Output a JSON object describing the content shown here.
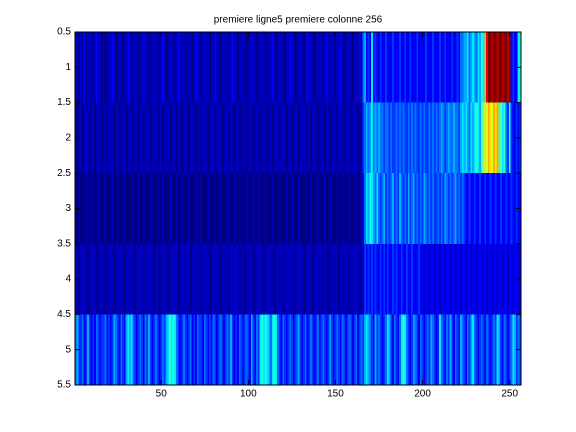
{
  "chart_data": {
    "type": "heatmap",
    "title": "premiere ligne5 premiere colonne 256",
    "colormap": "jet",
    "clim": [
      2,
      19
    ],
    "xlim": [
      0.5,
      256.5
    ],
    "xticks": [
      50,
      100,
      150,
      200,
      250
    ],
    "ylim": [
      0.5,
      5.5
    ],
    "y_reversed": true,
    "yticks": [
      0.5,
      1,
      1.5,
      2,
      2.5,
      3,
      3.5,
      4,
      4.5,
      5,
      5.5
    ],
    "values": [
      [
        3,
        3,
        2,
        3,
        3,
        4,
        2,
        3,
        3,
        3,
        2,
        3,
        4,
        3,
        3,
        2,
        3,
        2,
        3,
        3,
        3,
        4,
        3,
        2,
        3,
        3,
        3,
        2,
        3,
        3,
        4,
        3,
        2,
        3,
        3,
        3,
        2,
        3,
        3,
        4,
        3,
        3,
        2,
        3,
        3,
        3,
        3,
        2,
        3,
        3,
        4,
        3,
        2,
        3,
        3,
        3,
        3,
        2,
        3,
        4,
        3,
        3,
        3,
        2,
        3,
        3,
        3,
        2,
        3,
        4,
        3,
        3,
        2,
        3,
        3,
        3,
        3,
        2,
        3,
        3,
        4,
        3,
        3,
        2,
        3,
        3,
        3,
        3,
        2,
        3,
        4,
        3,
        3,
        2,
        3,
        3,
        3,
        3,
        2,
        3,
        3,
        4,
        3,
        3,
        2,
        3,
        3,
        3,
        3,
        2,
        3,
        3,
        3,
        4,
        3,
        2,
        3,
        3,
        3,
        3,
        2,
        3,
        3,
        4,
        3,
        3,
        2,
        3,
        3,
        3,
        3,
        2,
        3,
        4,
        3,
        3,
        3,
        2,
        3,
        3,
        3,
        3,
        2,
        3,
        4,
        3,
        3,
        3,
        2,
        3,
        3,
        3,
        4,
        3,
        2,
        3,
        3,
        3,
        3,
        2,
        3,
        3,
        3,
        4,
        3,
        6,
        7,
        4,
        5,
        4,
        8,
        4,
        5,
        4,
        4,
        5,
        4,
        4,
        5,
        4,
        4,
        4,
        5,
        4,
        4,
        4,
        5,
        4,
        4,
        5,
        4,
        4,
        5,
        4,
        4,
        4,
        5,
        4,
        4,
        4,
        4,
        5,
        4,
        4,
        4,
        5,
        4,
        4,
        4,
        5,
        4,
        4,
        5,
        4,
        4,
        4,
        5,
        4,
        4,
        5,
        4,
        6,
        6,
        7,
        7,
        8,
        6,
        7,
        8,
        7,
        6,
        8,
        7,
        9,
        8,
        14,
        17,
        19,
        19,
        18,
        19,
        19,
        18,
        19,
        19,
        18,
        19,
        19,
        18,
        19,
        4,
        5,
        4,
        4,
        8,
        9
      ],
      [
        3,
        2,
        3,
        3,
        2,
        3,
        3,
        3,
        2,
        3,
        3,
        2,
        3,
        3,
        3,
        2,
        3,
        3,
        2,
        3,
        3,
        3,
        2,
        3,
        3,
        2,
        3,
        3,
        3,
        2,
        3,
        3,
        2,
        3,
        3,
        3,
        2,
        3,
        3,
        2,
        3,
        3,
        3,
        2,
        3,
        3,
        3,
        2,
        3,
        3,
        2,
        3,
        3,
        3,
        2,
        3,
        3,
        3,
        2,
        3,
        3,
        2,
        3,
        3,
        3,
        2,
        3,
        3,
        3,
        2,
        3,
        3,
        2,
        3,
        3,
        3,
        2,
        3,
        3,
        3,
        2,
        3,
        3,
        3,
        2,
        3,
        3,
        3,
        2,
        3,
        3,
        2,
        3,
        3,
        3,
        2,
        3,
        3,
        2,
        3,
        3,
        3,
        2,
        3,
        3,
        3,
        2,
        3,
        3,
        3,
        2,
        3,
        3,
        2,
        3,
        3,
        3,
        2,
        3,
        3,
        3,
        2,
        3,
        3,
        2,
        3,
        3,
        3,
        2,
        3,
        3,
        3,
        2,
        3,
        3,
        2,
        3,
        3,
        3,
        2,
        3,
        3,
        3,
        2,
        3,
        3,
        2,
        3,
        3,
        3,
        2,
        3,
        3,
        3,
        2,
        3,
        3,
        3,
        2,
        3,
        3,
        3,
        2,
        3,
        3,
        5,
        6,
        7,
        6,
        7,
        8,
        6,
        7,
        6,
        7,
        6,
        6,
        5,
        6,
        6,
        5,
        6,
        5,
        5,
        6,
        5,
        6,
        5,
        6,
        5,
        5,
        6,
        5,
        6,
        5,
        6,
        5,
        5,
        6,
        5,
        6,
        5,
        5,
        6,
        5,
        6,
        5,
        6,
        5,
        6,
        7,
        6,
        5,
        6,
        7,
        6,
        6,
        7,
        6,
        6,
        5,
        7,
        8,
        7,
        8,
        7,
        6,
        8,
        7,
        8,
        9,
        8,
        7,
        9,
        11,
        13,
        12,
        14,
        13,
        12,
        14,
        13,
        14,
        9,
        10,
        8,
        9,
        6,
        5,
        9,
        5,
        4,
        4,
        5,
        4,
        5
      ],
      [
        2,
        2,
        3,
        2,
        2,
        2,
        3,
        2,
        2,
        3,
        2,
        2,
        2,
        3,
        2,
        2,
        2,
        3,
        2,
        2,
        2,
        3,
        2,
        2,
        3,
        2,
        2,
        2,
        3,
        2,
        2,
        2,
        3,
        2,
        2,
        2,
        3,
        2,
        2,
        3,
        2,
        2,
        2,
        3,
        2,
        2,
        2,
        3,
        2,
        2,
        3,
        2,
        2,
        2,
        3,
        2,
        2,
        2,
        3,
        2,
        2,
        3,
        2,
        2,
        2,
        3,
        2,
        2,
        2,
        3,
        2,
        2,
        3,
        2,
        2,
        2,
        3,
        2,
        2,
        2,
        3,
        2,
        2,
        3,
        2,
        2,
        2,
        3,
        2,
        2,
        2,
        3,
        2,
        2,
        3,
        2,
        2,
        2,
        3,
        2,
        2,
        2,
        3,
        2,
        2,
        3,
        2,
        2,
        2,
        3,
        2,
        2,
        2,
        3,
        2,
        2,
        2,
        3,
        2,
        2,
        2,
        3,
        2,
        2,
        3,
        2,
        2,
        2,
        3,
        2,
        2,
        2,
        3,
        2,
        2,
        3,
        2,
        2,
        2,
        3,
        2,
        2,
        2,
        3,
        2,
        2,
        3,
        2,
        2,
        2,
        3,
        2,
        2,
        3,
        2,
        2,
        2,
        3,
        2,
        2,
        2,
        3,
        2,
        2,
        3,
        4,
        6,
        8,
        7,
        9,
        8,
        7,
        6,
        8,
        6,
        5,
        6,
        7,
        5,
        6,
        5,
        6,
        7,
        5,
        6,
        5,
        7,
        6,
        5,
        6,
        5,
        7,
        5,
        6,
        7,
        5,
        6,
        5,
        6,
        5,
        7,
        6,
        5,
        6,
        5,
        6,
        5,
        5,
        6,
        5,
        6,
        5,
        7,
        6,
        5,
        6,
        5,
        6,
        7,
        5,
        6,
        5,
        6,
        5,
        4,
        4,
        5,
        4,
        4,
        5,
        4,
        4,
        5,
        4,
        4,
        5,
        4,
        4,
        5,
        4,
        4,
        5,
        4,
        4,
        5,
        4,
        4,
        5,
        4,
        4,
        5,
        4,
        4,
        5,
        4,
        4
      ],
      [
        3,
        3,
        2,
        3,
        3,
        3,
        3,
        2,
        3,
        3,
        3,
        3,
        2,
        3,
        3,
        3,
        3,
        2,
        3,
        3,
        3,
        3,
        2,
        3,
        3,
        3,
        3,
        3,
        2,
        3,
        3,
        3,
        3,
        3,
        2,
        3,
        3,
        3,
        3,
        2,
        3,
        3,
        3,
        3,
        3,
        2,
        3,
        3,
        2,
        3,
        3,
        3,
        3,
        2,
        3,
        3,
        3,
        3,
        3,
        2,
        3,
        3,
        3,
        3,
        3,
        3,
        2,
        3,
        3,
        3,
        3,
        3,
        2,
        3,
        3,
        3,
        3,
        2,
        3,
        3,
        3,
        3,
        3,
        2,
        3,
        3,
        3,
        3,
        2,
        3,
        3,
        3,
        3,
        3,
        2,
        3,
        3,
        2,
        3,
        3,
        3,
        3,
        2,
        3,
        3,
        3,
        3,
        3,
        2,
        3,
        3,
        3,
        3,
        3,
        2,
        3,
        3,
        3,
        3,
        2,
        3,
        3,
        3,
        3,
        3,
        2,
        3,
        3,
        3,
        3,
        3,
        2,
        3,
        3,
        3,
        3,
        2,
        3,
        3,
        3,
        3,
        3,
        2,
        3,
        3,
        2,
        3,
        3,
        3,
        3,
        3,
        2,
        3,
        3,
        3,
        3,
        2,
        3,
        3,
        3,
        3,
        3,
        3,
        2,
        3,
        3,
        5,
        4,
        5,
        4,
        5,
        4,
        5,
        4,
        4,
        5,
        4,
        5,
        4,
        5,
        4,
        4,
        5,
        4,
        5,
        4,
        4,
        5,
        4,
        4,
        5,
        4,
        4,
        5,
        4,
        4,
        4,
        5,
        4,
        4,
        3,
        4,
        4,
        3,
        4,
        4,
        3,
        4,
        4,
        3,
        4,
        4,
        3,
        4,
        4,
        3,
        4,
        4,
        3,
        4,
        4,
        3,
        4,
        4,
        3,
        4,
        4,
        3,
        4,
        4,
        3,
        4,
        4,
        3,
        4,
        4,
        3,
        4,
        4,
        3,
        4,
        4,
        3,
        4,
        4,
        3,
        4,
        4,
        3,
        4,
        4,
        3,
        4,
        4,
        3,
        4
      ],
      [
        6,
        7,
        5,
        5,
        6,
        4,
        5,
        7,
        5,
        4,
        5,
        4,
        6,
        5,
        4,
        5,
        5,
        6,
        4,
        5,
        4,
        5,
        7,
        6,
        5,
        4,
        6,
        5,
        4,
        7,
        8,
        7,
        8,
        6,
        5,
        4,
        5,
        6,
        5,
        4,
        6,
        5,
        7,
        5,
        4,
        5,
        6,
        5,
        4,
        5,
        6,
        5,
        7,
        8,
        9,
        8,
        9,
        8,
        6,
        5,
        4,
        5,
        6,
        5,
        4,
        5,
        6,
        4,
        5,
        4,
        6,
        5,
        5,
        4,
        6,
        5,
        4,
        5,
        4,
        6,
        5,
        4,
        5,
        6,
        5,
        4,
        5,
        6,
        5,
        7,
        5,
        4,
        5,
        4,
        6,
        5,
        4,
        5,
        6,
        5,
        4,
        7,
        5,
        4,
        6,
        5,
        8,
        9,
        8,
        9,
        8,
        7,
        6,
        8,
        9,
        8,
        6,
        5,
        4,
        6,
        5,
        4,
        5,
        6,
        5,
        4,
        5,
        6,
        7,
        5,
        4,
        5,
        6,
        4,
        5,
        6,
        5,
        4,
        5,
        6,
        4,
        5,
        6,
        5,
        4,
        5,
        7,
        5,
        4,
        5,
        6,
        5,
        4,
        6,
        5,
        4,
        5,
        6,
        5,
        4,
        5,
        6,
        4,
        5,
        6,
        5,
        7,
        8,
        7,
        6,
        5,
        4,
        7,
        5,
        6,
        5,
        4,
        5,
        6,
        8,
        7,
        5,
        4,
        6,
        5,
        4,
        6,
        8,
        9,
        8,
        6,
        5,
        4,
        5,
        7,
        6,
        5,
        4,
        6,
        5,
        4,
        5,
        6,
        5,
        7,
        6,
        5,
        4,
        5,
        8,
        6,
        5,
        4,
        6,
        5,
        7,
        5,
        4,
        6,
        5,
        4,
        7,
        6,
        5,
        4,
        6,
        5,
        7,
        8,
        6,
        5,
        4,
        5,
        6,
        5,
        4,
        6,
        5,
        4,
        5,
        6,
        5,
        8,
        7,
        5,
        4,
        6,
        5,
        4,
        5,
        6,
        8,
        7,
        5,
        6,
        5
      ]
    ]
  }
}
